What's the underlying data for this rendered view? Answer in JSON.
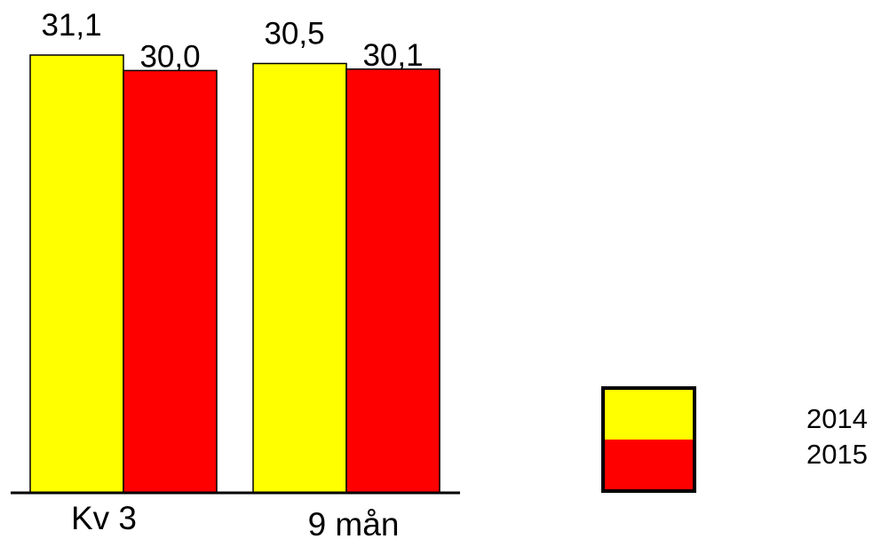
{
  "chart_data": {
    "type": "bar",
    "categories": [
      "Kv 3",
      "9 mån"
    ],
    "series": [
      {
        "name": "2014",
        "values": [
          31.1,
          30.5
        ],
        "labels": [
          "31,1",
          "30,5"
        ],
        "color": "#ffff00"
      },
      {
        "name": "2015",
        "values": [
          30.0,
          30.1
        ],
        "labels": [
          "30,0",
          "30,1"
        ],
        "color": "#ff0000"
      }
    ],
    "title": "",
    "xlabel": "",
    "ylabel": "",
    "ylim": [
      0,
      31.1
    ],
    "grid": false,
    "legend_position": "bottom-right"
  }
}
